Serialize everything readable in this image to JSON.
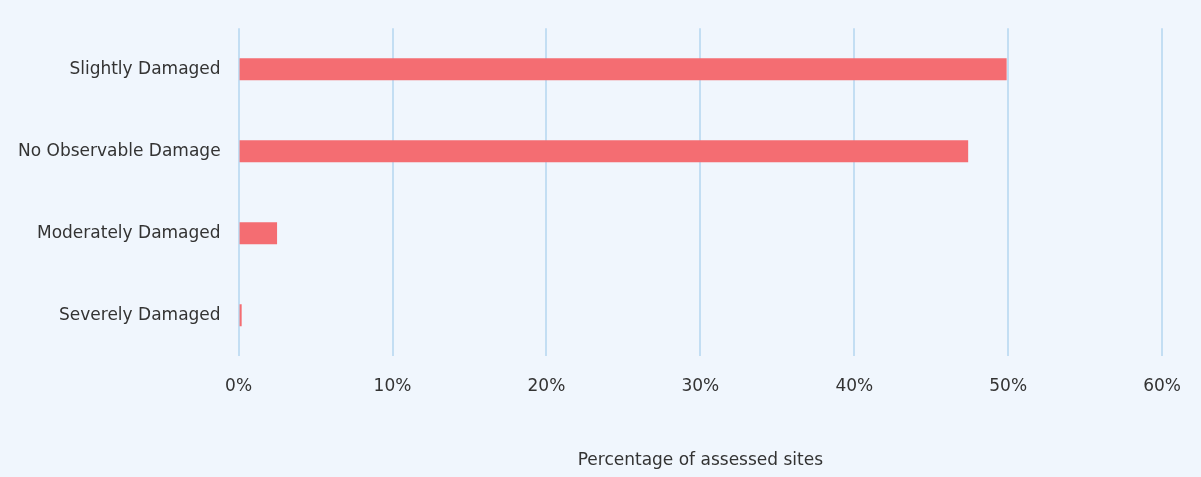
{
  "chart_data": {
    "type": "bar",
    "orientation": "horizontal",
    "categories": [
      "Slightly Damaged",
      "No Observable Damage",
      "Moderately Damaged",
      "Severely Damaged"
    ],
    "values": [
      49.9,
      47.4,
      2.5,
      0.2
    ],
    "color": "#f46d72",
    "xlabel": "Percentage of assessed sites",
    "xlim": [
      0,
      60
    ],
    "xticks": [
      {
        "value": 0,
        "label": "0%"
      },
      {
        "value": 10,
        "label": "10%"
      },
      {
        "value": 20,
        "label": "20%"
      },
      {
        "value": 30,
        "label": "30%"
      },
      {
        "value": 40,
        "label": "40%"
      },
      {
        "value": 50,
        "label": "50%"
      },
      {
        "value": 60,
        "label": "60%"
      }
    ],
    "grid": "x",
    "legend": false
  }
}
